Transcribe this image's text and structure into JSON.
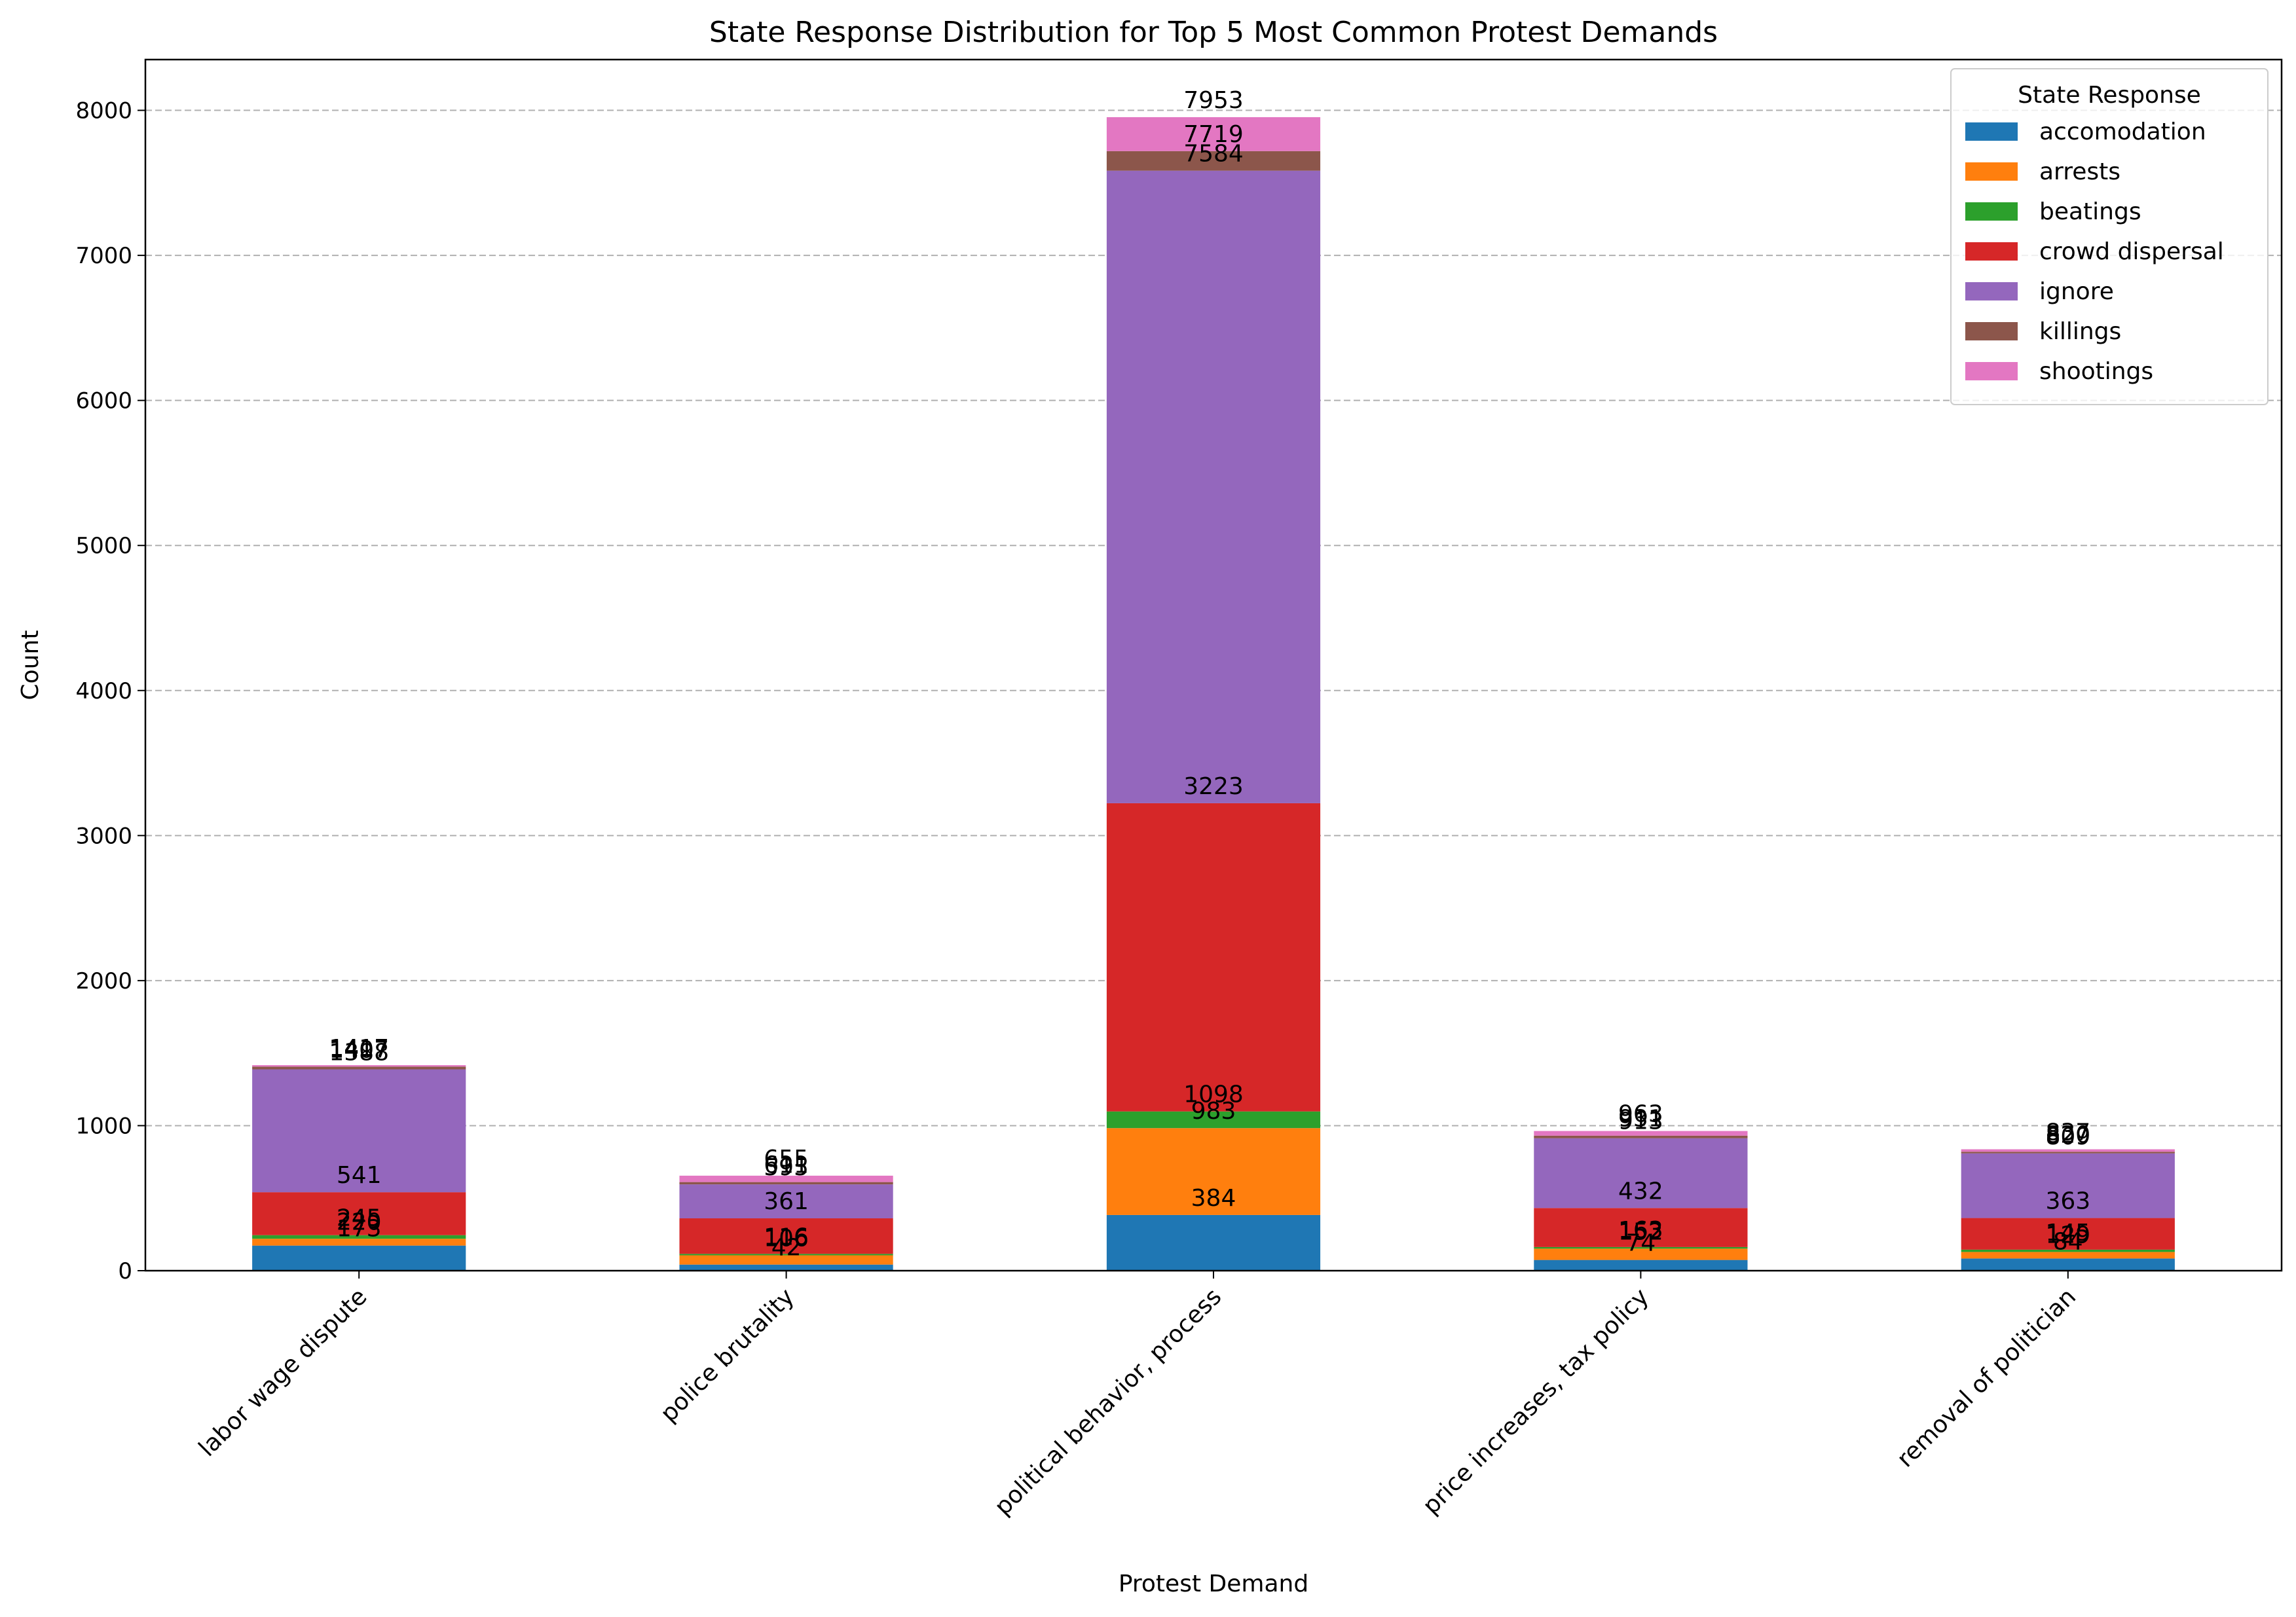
{
  "chart_data": {
    "type": "bar",
    "stacked": true,
    "title": "State Response Distribution for Top 5 Most Common Protest Demands",
    "xlabel": "Protest Demand",
    "ylabel": "Count",
    "ylim": [
      0,
      8350
    ],
    "yticks": [
      0,
      1000,
      2000,
      3000,
      4000,
      5000,
      6000,
      7000,
      8000
    ],
    "grid": "y-dashed",
    "legend": {
      "title": "State Response",
      "placement": "top-right"
    },
    "categories": [
      "labor wage dispute",
      "police brutality",
      "political behavior, process",
      "price increases, tax policy",
      "removal of politician"
    ],
    "series": [
      {
        "name": "accomodation",
        "color": "#1f77b4",
        "values": [
          173,
          42,
          384,
          74,
          84
        ]
      },
      {
        "name": "arrests",
        "color": "#ff7f0e",
        "values": [
          47,
          64,
          599,
          78,
          45
        ]
      },
      {
        "name": "beatings",
        "color": "#2ca02c",
        "values": [
          25,
          10,
          115,
          11,
          16
        ]
      },
      {
        "name": "crowd dispersal",
        "color": "#d62728",
        "values": [
          296,
          245,
          2125,
          269,
          218
        ]
      },
      {
        "name": "ignore",
        "color": "#9467bd",
        "values": [
          847,
          234,
          4361,
          481,
          446
        ]
      },
      {
        "name": "killings",
        "color": "#8c564b",
        "values": [
          19,
          16,
          135,
          18,
          11
        ]
      },
      {
        "name": "shootings",
        "color": "#e377c2",
        "values": [
          10,
          44,
          234,
          32,
          17
        ]
      }
    ],
    "labels": [
      [
        "173",
        "220",
        "245",
        "541",
        "1388",
        "1407",
        "1417"
      ],
      [
        "42",
        "106",
        "116",
        "361",
        "595",
        "611",
        "655"
      ],
      [
        "384",
        "983",
        "1098",
        "3223",
        "7584",
        "7719",
        "7953"
      ],
      [
        "74",
        "152",
        "163",
        "432",
        "913",
        "931",
        "963"
      ],
      [
        "84",
        "129",
        "145",
        "363",
        "809",
        "820",
        "837"
      ]
    ]
  }
}
